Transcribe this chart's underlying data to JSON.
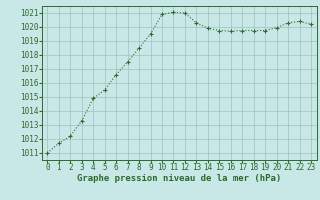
{
  "x": [
    0,
    1,
    2,
    3,
    4,
    5,
    6,
    7,
    8,
    9,
    10,
    11,
    12,
    13,
    14,
    15,
    16,
    17,
    18,
    19,
    20,
    21,
    22,
    23
  ],
  "y": [
    1011.0,
    1011.7,
    1012.2,
    1013.3,
    1014.9,
    1015.5,
    1016.6,
    1017.5,
    1018.5,
    1019.5,
    1020.9,
    1021.05,
    1021.0,
    1020.3,
    1019.9,
    1019.75,
    1019.7,
    1019.75,
    1019.75,
    1019.75,
    1019.95,
    1020.3,
    1020.4,
    1020.2
  ],
  "line_color": "#2d6a2d",
  "marker": "+",
  "bg_color": "#c8e8e8",
  "grid_color": "#a0c0c0",
  "xlabel": "Graphe pression niveau de la mer (hPa)",
  "xlabel_fontsize": 6.5,
  "yticks": [
    1011,
    1012,
    1013,
    1014,
    1015,
    1016,
    1017,
    1018,
    1019,
    1020,
    1021
  ],
  "xticks": [
    0,
    1,
    2,
    3,
    4,
    5,
    6,
    7,
    8,
    9,
    10,
    11,
    12,
    13,
    14,
    15,
    16,
    17,
    18,
    19,
    20,
    21,
    22,
    23
  ],
  "ylim": [
    1010.5,
    1021.5
  ],
  "xlim": [
    -0.5,
    23.5
  ],
  "tick_fontsize": 5.5,
  "line_width": 0.8,
  "marker_size": 3.5
}
